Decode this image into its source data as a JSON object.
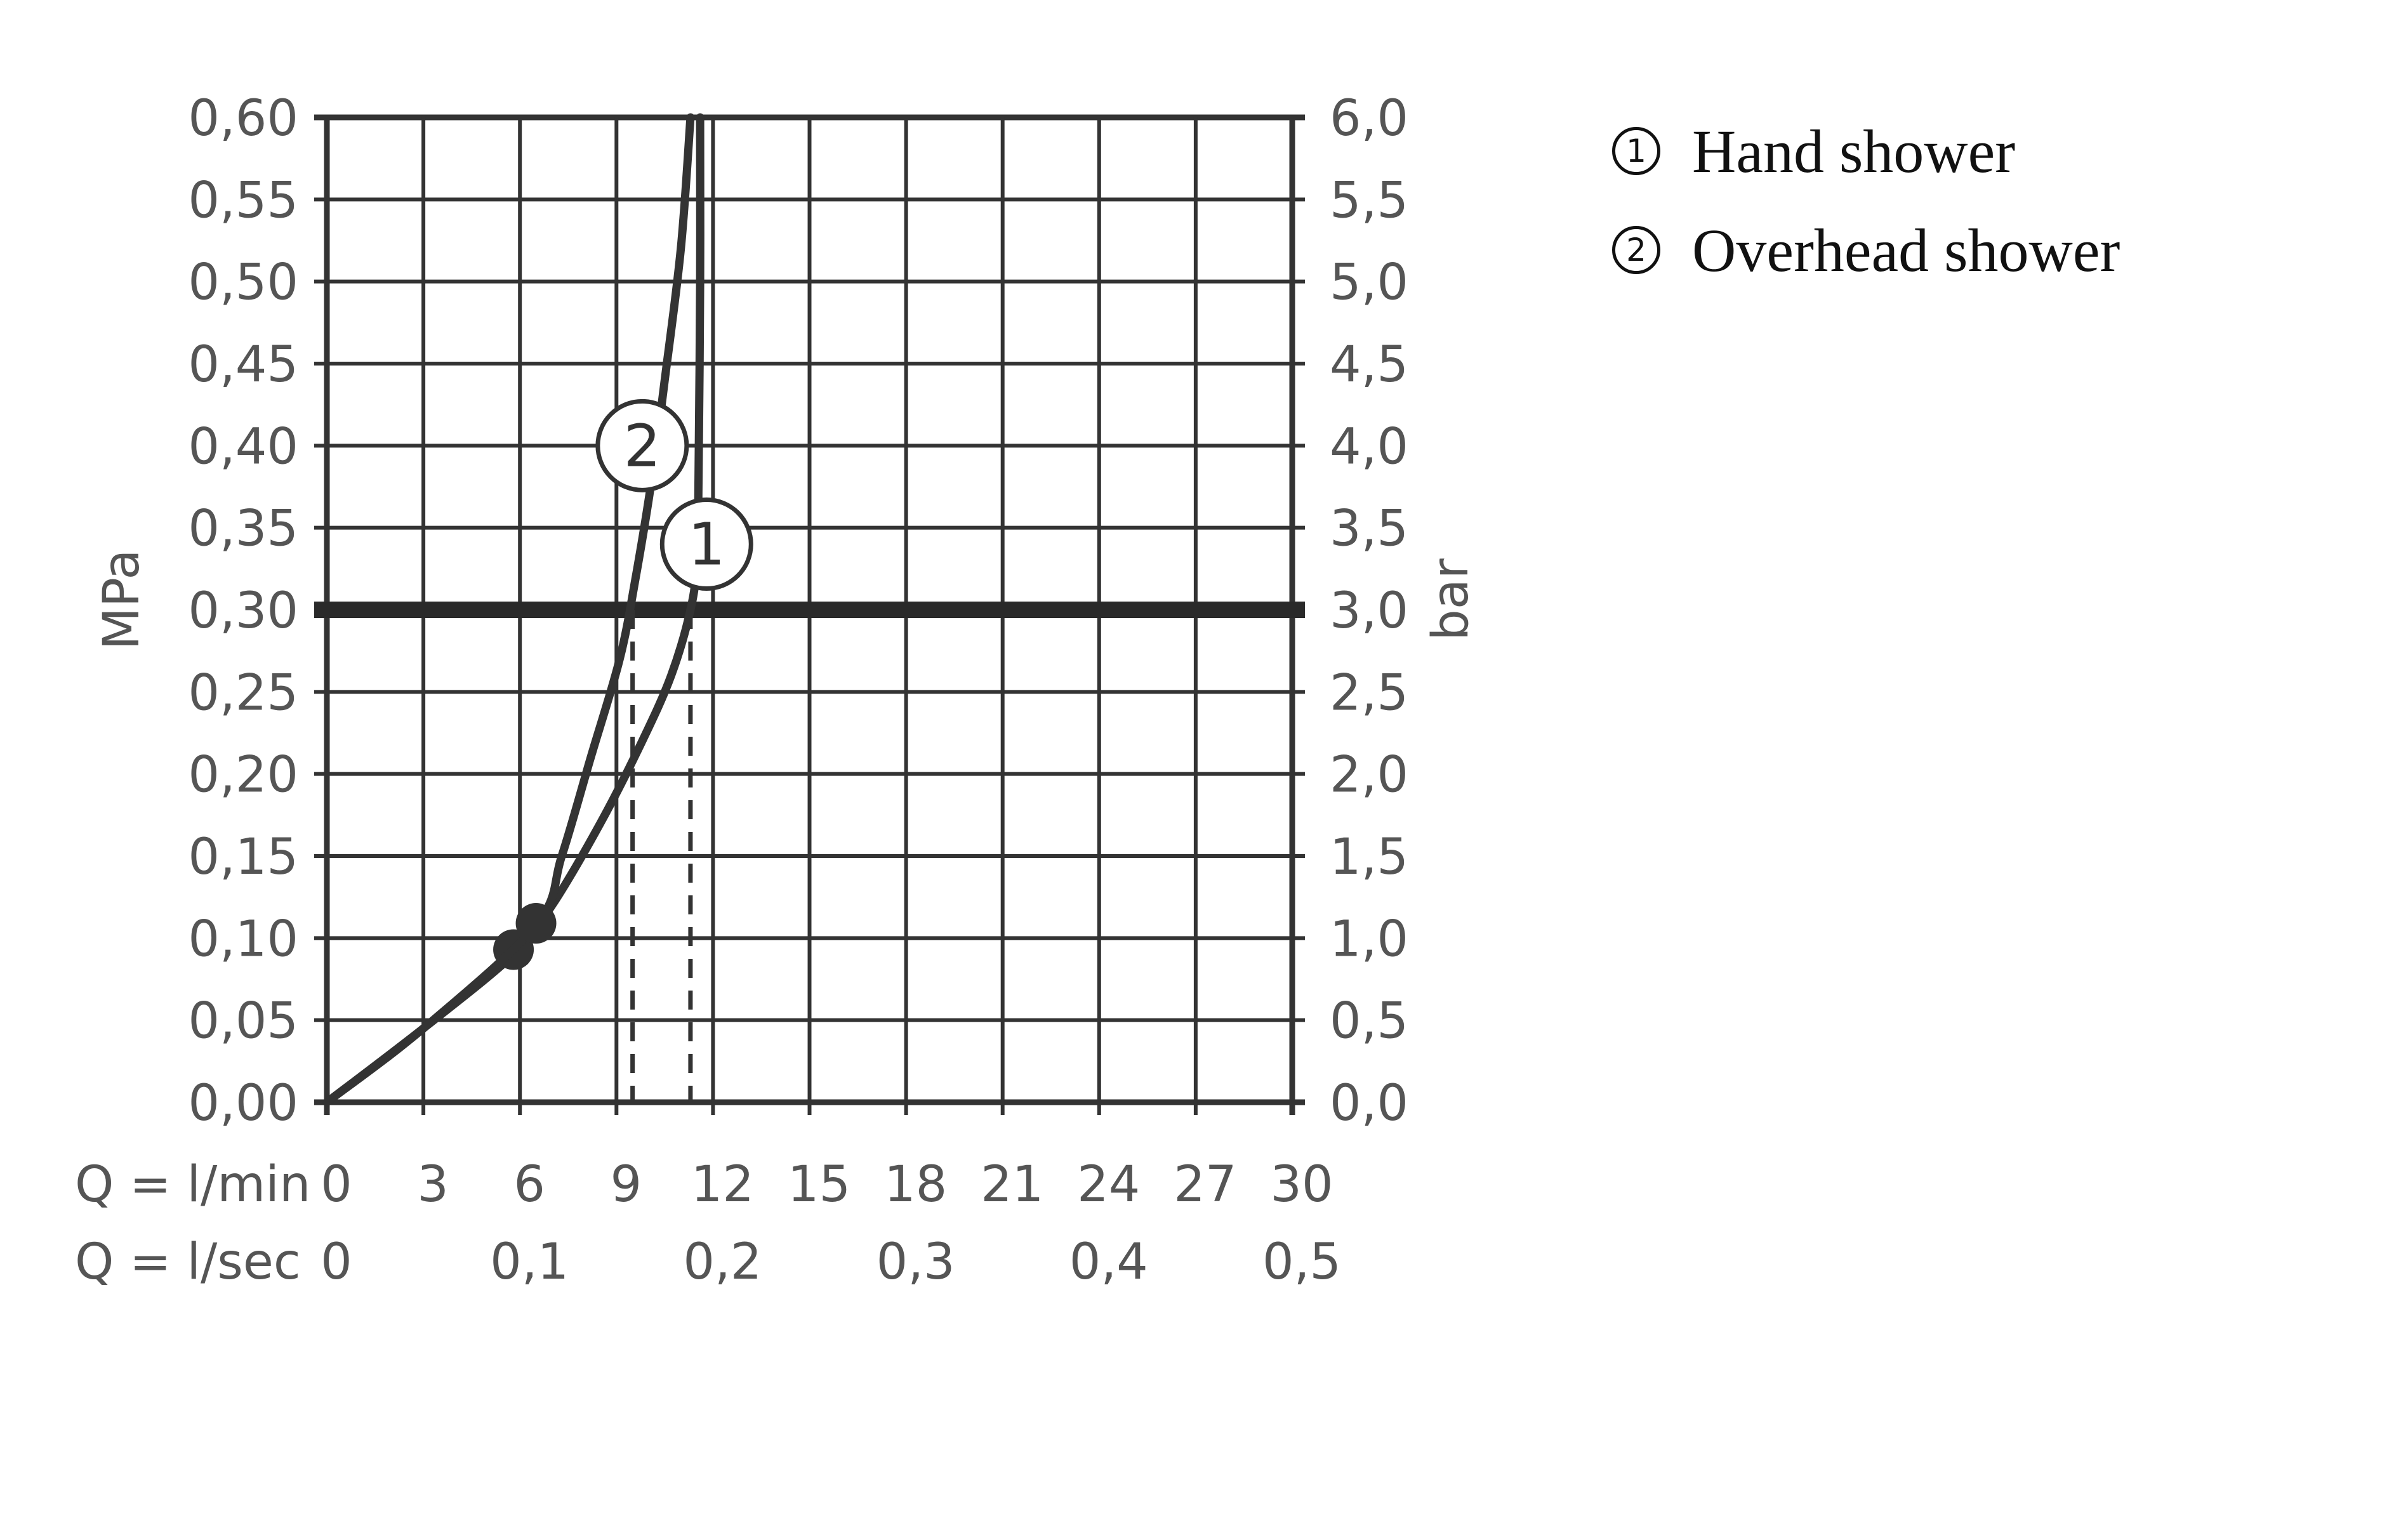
{
  "chart_data": {
    "type": "line",
    "title": "",
    "left_axis": {
      "label": "MPa",
      "ylim": [
        0,
        0.6
      ],
      "ticks": [
        "0,00",
        "0,05",
        "0,10",
        "0,15",
        "0,20",
        "0,25",
        "0,30",
        "0,35",
        "0,40",
        "0,45",
        "0,50",
        "0,55",
        "0,60"
      ]
    },
    "right_axis": {
      "label": "bar",
      "ylim": [
        0,
        6.0
      ],
      "ticks": [
        "0,0",
        "0,5",
        "1,0",
        "1,5",
        "2,0",
        "2,5",
        "3,0",
        "3,5",
        "4,0",
        "4,5",
        "5,0",
        "5,5",
        "6,0"
      ]
    },
    "x_axis": {
      "xlim": [
        0,
        30
      ],
      "row1_prefix": "Q = l/min",
      "row1_ticks": [
        "0",
        "3",
        "6",
        "9",
        "12",
        "15",
        "18",
        "21",
        "24",
        "27",
        "30"
      ],
      "row2_prefix": "Q = l/sec",
      "row2_ticks": [
        {
          "value": 0,
          "label": "0"
        },
        {
          "value": 6,
          "label": "0,1"
        },
        {
          "value": 12,
          "label": "0,2"
        },
        {
          "value": 18,
          "label": "0,3"
        },
        {
          "value": 24,
          "label": "0,4"
        },
        {
          "value": 30,
          "label": "0,5"
        }
      ]
    },
    "grid": true,
    "reference_line": {
      "y": 0.3
    },
    "series": [
      {
        "marker_label": "1",
        "x": [
          0,
          3,
          5.8,
          7,
          8.5,
          9.8,
          10.7,
          11.3,
          11.5,
          11.55,
          11.6,
          11.6
        ],
        "y": [
          0,
          0.045,
          0.09,
          0.12,
          0.17,
          0.22,
          0.26,
          0.3,
          0.33,
          0.38,
          0.5,
          0.6
        ],
        "start_dot": {
          "x": 5.8,
          "y": 0.093
        },
        "label_at": {
          "x": 11.8,
          "y": 0.34
        },
        "flow_at_ref": 11.3
      },
      {
        "marker_label": "2",
        "x": [
          0,
          3,
          6.5,
          7.3,
          8.2,
          9.1,
          9.6,
          10.1,
          10.5,
          11.0,
          11.3
        ],
        "y": [
          0,
          0.045,
          0.108,
          0.15,
          0.21,
          0.27,
          0.32,
          0.38,
          0.44,
          0.52,
          0.6
        ],
        "start_dot": {
          "x": 6.5,
          "y": 0.109
        },
        "label_at": {
          "x": 9.8,
          "y": 0.4
        },
        "flow_at_ref": 9.5
      }
    ]
  },
  "legend": [
    {
      "symbol": "1",
      "label": "Hand shower"
    },
    {
      "symbol": "2",
      "label": "Overhead shower"
    }
  ]
}
